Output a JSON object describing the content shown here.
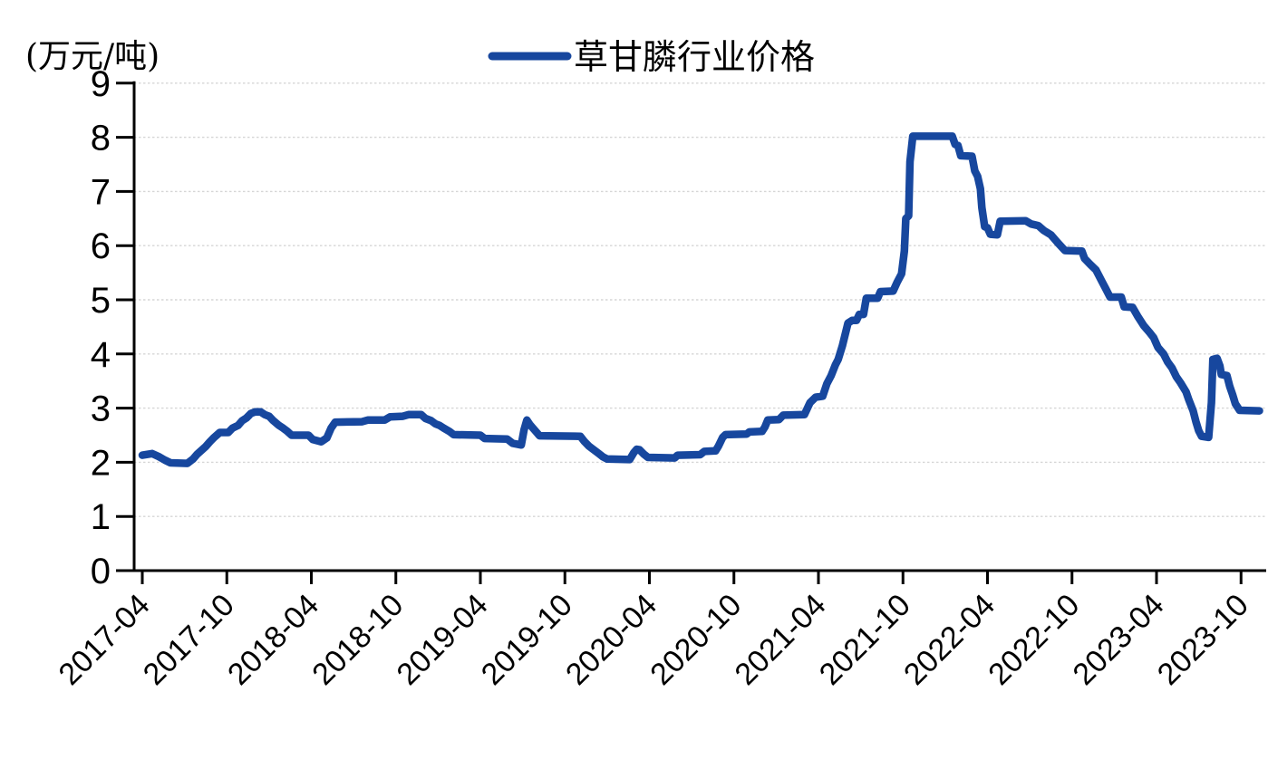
{
  "chart_data": {
    "type": "line",
    "title": "",
    "unit_label": "(万元/吨)",
    "legend_position": "top-center",
    "grid": true,
    "x_axis": {
      "tick_labels": [
        "2017-04",
        "2017-10",
        "2018-04",
        "2018-10",
        "2019-04",
        "2019-10",
        "2020-04",
        "2020-10",
        "2021-04",
        "2021-10",
        "2022-04",
        "2022-10",
        "2023-04",
        "2023-10"
      ],
      "tick_interval_months": 6,
      "label_rotation_deg": -45
    },
    "y_axis": {
      "min": 0,
      "max": 9,
      "tick_step": 1,
      "tick_labels": [
        "0",
        "1",
        "2",
        "3",
        "4",
        "5",
        "6",
        "7",
        "8",
        "9"
      ]
    },
    "series": [
      {
        "name": "草甘膦行业价格",
        "color": "#17479E",
        "x_unit": "months_since_2017-04",
        "points": [
          [
            0.0,
            2.13
          ],
          [
            0.7,
            2.16
          ],
          [
            1.2,
            2.1
          ],
          [
            1.6,
            2.04
          ],
          [
            2.0,
            1.99
          ],
          [
            3.2,
            1.98
          ],
          [
            3.6,
            2.06
          ],
          [
            3.9,
            2.15
          ],
          [
            4.5,
            2.29
          ],
          [
            4.8,
            2.38
          ],
          [
            5.1,
            2.46
          ],
          [
            5.5,
            2.55
          ],
          [
            6.1,
            2.55
          ],
          [
            6.4,
            2.63
          ],
          [
            6.8,
            2.68
          ],
          [
            7.1,
            2.77
          ],
          [
            7.4,
            2.82
          ],
          [
            7.7,
            2.9
          ],
          [
            8.0,
            2.93
          ],
          [
            8.4,
            2.93
          ],
          [
            8.7,
            2.88
          ],
          [
            9.0,
            2.85
          ],
          [
            9.3,
            2.77
          ],
          [
            9.7,
            2.68
          ],
          [
            10.0,
            2.63
          ],
          [
            10.3,
            2.57
          ],
          [
            10.6,
            2.5
          ],
          [
            11.8,
            2.5
          ],
          [
            12.1,
            2.42
          ],
          [
            12.7,
            2.38
          ],
          [
            13.1,
            2.45
          ],
          [
            13.4,
            2.63
          ],
          [
            13.7,
            2.74
          ],
          [
            15.6,
            2.75
          ],
          [
            16.0,
            2.78
          ],
          [
            17.2,
            2.78
          ],
          [
            17.6,
            2.84
          ],
          [
            18.5,
            2.85
          ],
          [
            18.9,
            2.88
          ],
          [
            19.8,
            2.88
          ],
          [
            20.1,
            2.81
          ],
          [
            20.5,
            2.77
          ],
          [
            20.8,
            2.71
          ],
          [
            21.1,
            2.68
          ],
          [
            21.4,
            2.63
          ],
          [
            21.8,
            2.57
          ],
          [
            22.1,
            2.51
          ],
          [
            24.0,
            2.5
          ],
          [
            24.3,
            2.44
          ],
          [
            25.9,
            2.43
          ],
          [
            26.3,
            2.35
          ],
          [
            26.9,
            2.32
          ],
          [
            27.1,
            2.6
          ],
          [
            27.3,
            2.78
          ],
          [
            27.5,
            2.7
          ],
          [
            27.7,
            2.64
          ],
          [
            28.0,
            2.55
          ],
          [
            28.2,
            2.49
          ],
          [
            31.1,
            2.48
          ],
          [
            31.4,
            2.38
          ],
          [
            31.7,
            2.3
          ],
          [
            32.0,
            2.24
          ],
          [
            32.4,
            2.16
          ],
          [
            32.7,
            2.1
          ],
          [
            33.0,
            2.06
          ],
          [
            34.6,
            2.05
          ],
          [
            34.9,
            2.18
          ],
          [
            35.1,
            2.24
          ],
          [
            35.3,
            2.23
          ],
          [
            35.6,
            2.15
          ],
          [
            35.9,
            2.09
          ],
          [
            37.8,
            2.08
          ],
          [
            38.0,
            2.13
          ],
          [
            39.6,
            2.14
          ],
          [
            39.9,
            2.2
          ],
          [
            40.7,
            2.21
          ],
          [
            40.9,
            2.3
          ],
          [
            41.2,
            2.46
          ],
          [
            41.4,
            2.51
          ],
          [
            42.9,
            2.52
          ],
          [
            43.1,
            2.56
          ],
          [
            44.0,
            2.57
          ],
          [
            44.2,
            2.65
          ],
          [
            44.4,
            2.78
          ],
          [
            45.2,
            2.79
          ],
          [
            45.5,
            2.87
          ],
          [
            47.0,
            2.88
          ],
          [
            47.4,
            3.1
          ],
          [
            47.8,
            3.2
          ],
          [
            48.3,
            3.22
          ],
          [
            48.6,
            3.45
          ],
          [
            48.9,
            3.6
          ],
          [
            49.2,
            3.8
          ],
          [
            49.4,
            3.9
          ],
          [
            49.7,
            4.15
          ],
          [
            50.1,
            4.57
          ],
          [
            50.4,
            4.62
          ],
          [
            50.7,
            4.62
          ],
          [
            50.9,
            4.73
          ],
          [
            51.2,
            4.73
          ],
          [
            51.4,
            5.03
          ],
          [
            52.2,
            5.03
          ],
          [
            52.4,
            5.15
          ],
          [
            53.3,
            5.16
          ],
          [
            53.6,
            5.33
          ],
          [
            53.9,
            5.48
          ],
          [
            54.1,
            5.9
          ],
          [
            54.2,
            6.5
          ],
          [
            54.4,
            6.55
          ],
          [
            54.5,
            7.55
          ],
          [
            54.7,
            8.02
          ],
          [
            57.5,
            8.02
          ],
          [
            57.7,
            7.87
          ],
          [
            57.9,
            7.85
          ],
          [
            58.1,
            7.66
          ],
          [
            58.9,
            7.65
          ],
          [
            59.1,
            7.38
          ],
          [
            59.3,
            7.28
          ],
          [
            59.5,
            7.05
          ],
          [
            59.6,
            6.7
          ],
          [
            59.8,
            6.35
          ],
          [
            60.0,
            6.33
          ],
          [
            60.2,
            6.21
          ],
          [
            60.7,
            6.2
          ],
          [
            60.9,
            6.45
          ],
          [
            62.7,
            6.46
          ],
          [
            63.1,
            6.4
          ],
          [
            63.6,
            6.37
          ],
          [
            64.0,
            6.28
          ],
          [
            64.5,
            6.2
          ],
          [
            65.0,
            6.05
          ],
          [
            65.5,
            5.91
          ],
          [
            66.7,
            5.9
          ],
          [
            66.9,
            5.76
          ],
          [
            67.3,
            5.65
          ],
          [
            67.7,
            5.55
          ],
          [
            68.1,
            5.35
          ],
          [
            68.4,
            5.2
          ],
          [
            68.7,
            5.05
          ],
          [
            69.5,
            5.05
          ],
          [
            69.7,
            4.87
          ],
          [
            70.3,
            4.86
          ],
          [
            70.7,
            4.68
          ],
          [
            71.1,
            4.52
          ],
          [
            71.5,
            4.4
          ],
          [
            71.8,
            4.3
          ],
          [
            72.1,
            4.12
          ],
          [
            72.5,
            4.0
          ],
          [
            72.8,
            3.85
          ],
          [
            73.1,
            3.74
          ],
          [
            73.4,
            3.58
          ],
          [
            73.7,
            3.47
          ],
          [
            74.1,
            3.3
          ],
          [
            74.3,
            3.15
          ],
          [
            74.6,
            2.95
          ],
          [
            74.8,
            2.75
          ],
          [
            75.0,
            2.58
          ],
          [
            75.2,
            2.48
          ],
          [
            75.7,
            2.46
          ],
          [
            75.9,
            3.1
          ],
          [
            76.0,
            3.9
          ],
          [
            76.3,
            3.92
          ],
          [
            76.5,
            3.78
          ],
          [
            76.6,
            3.62
          ],
          [
            77.0,
            3.6
          ],
          [
            77.2,
            3.4
          ],
          [
            77.4,
            3.25
          ],
          [
            77.6,
            3.08
          ],
          [
            77.9,
            2.96
          ],
          [
            79.3,
            2.95
          ]
        ]
      }
    ]
  },
  "colors": {
    "line": "#17479E",
    "axis": "#000000",
    "gridline": "#D6D6D6",
    "text": "#000000",
    "background": "#FFFFFF"
  }
}
